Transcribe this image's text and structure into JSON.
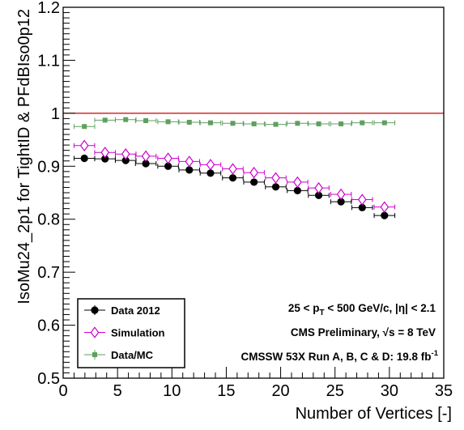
{
  "colors": {
    "data": "#000000",
    "simulation": "#cc00cc",
    "ratio": "#5f9f5f",
    "reference_line": "#cc0000"
  },
  "chart_data": {
    "type": "scatter",
    "title": "",
    "xlabel": "Number of Vertices [-]",
    "ylabel": "IsoMu24_2p1 for TightID & PFdBIso0p12",
    "xlim": [
      0,
      35
    ],
    "ylim": [
      0.5,
      1.2
    ],
    "x_ticks": [
      "0",
      "5",
      "10",
      "15",
      "20",
      "25",
      "30",
      "35"
    ],
    "y_ticks": [
      "0.5",
      "0.6",
      "0.7",
      "0.8",
      "0.9",
      "1",
      "1.1",
      "1.2"
    ],
    "grid": false,
    "reference_line": {
      "y": 1.0
    },
    "legend_position": "bottom-left",
    "series": [
      {
        "name": "Data 2012",
        "marker": "filled-circle",
        "x": [
          1.95,
          3.85,
          5.75,
          7.6,
          9.65,
          11.6,
          13.55,
          15.6,
          17.55,
          19.55,
          21.55,
          23.5,
          25.55,
          27.5,
          29.55
        ],
        "xerr": [
          0.95,
          0.95,
          0.95,
          0.95,
          0.95,
          0.95,
          0.95,
          0.95,
          0.95,
          0.95,
          0.95,
          0.95,
          0.95,
          0.95,
          0.95
        ],
        "y": [
          0.915,
          0.914,
          0.911,
          0.905,
          0.9,
          0.893,
          0.887,
          0.878,
          0.87,
          0.861,
          0.854,
          0.845,
          0.833,
          0.822,
          0.807
        ]
      },
      {
        "name": "Simulation",
        "marker": "open-diamond",
        "x": [
          1.95,
          3.85,
          5.75,
          7.6,
          9.65,
          11.6,
          13.55,
          15.6,
          17.55,
          19.55,
          21.55,
          23.5,
          25.55,
          27.5,
          29.55
        ],
        "xerr": [
          0.95,
          0.95,
          0.95,
          0.95,
          0.95,
          0.95,
          0.95,
          0.95,
          0.95,
          0.95,
          0.95,
          0.95,
          0.95,
          0.95,
          0.95
        ],
        "y": [
          0.939,
          0.926,
          0.923,
          0.919,
          0.915,
          0.909,
          0.903,
          0.895,
          0.888,
          0.878,
          0.87,
          0.859,
          0.847,
          0.837,
          0.823
        ]
      },
      {
        "name": "Data/MC",
        "marker": "filled-square",
        "x": [
          1.95,
          3.85,
          5.75,
          7.6,
          9.65,
          11.6,
          13.55,
          15.6,
          17.55,
          19.55,
          21.55,
          23.5,
          25.55,
          27.5,
          29.55
        ],
        "xerr": [
          0.95,
          0.95,
          0.95,
          0.95,
          0.95,
          0.95,
          0.95,
          0.95,
          0.95,
          0.95,
          0.95,
          0.95,
          0.95,
          0.95,
          0.95
        ],
        "y": [
          0.975,
          0.987,
          0.988,
          0.986,
          0.984,
          0.983,
          0.982,
          0.981,
          0.98,
          0.979,
          0.981,
          0.98,
          0.98,
          0.982,
          0.982
        ]
      }
    ],
    "annotations": {
      "cuts_pre": "25 < p",
      "cuts_sub": "T",
      "cuts_post": " < 500 GeV/c, |η| < 2.1",
      "prelim_pre": "CMS Preliminary, ",
      "prelim_root": "√s",
      "prelim_post": " = 8 TeV",
      "lumi_pre": "CMSSW 53X Run A, B, C & D: 19.8 fb",
      "lumi_sup": "-1"
    }
  }
}
